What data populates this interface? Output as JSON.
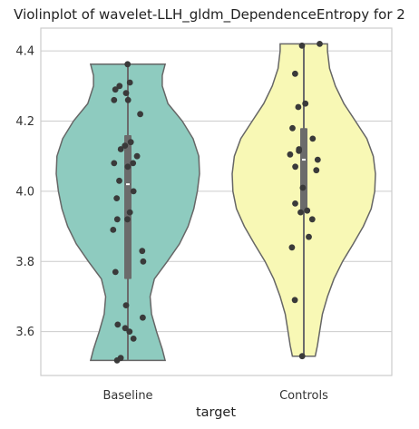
{
  "chart_data": {
    "type": "violin",
    "title": "Violinplot of wavelet-LLH_gldm_DependenceEntropy for 2",
    "xlabel": "target",
    "ylabel": "",
    "categories": [
      "Baseline",
      "Controls"
    ],
    "ylim": [
      3.475,
      4.465
    ],
    "yticks": [
      3.6,
      3.8,
      4.0,
      4.2,
      4.4
    ],
    "ytick_labels": [
      "3.6",
      "3.8",
      "4.0",
      "4.2",
      "4.4"
    ],
    "grid": true,
    "colors": {
      "Baseline": "#8ecbbf",
      "Controls": "#f8f8b5"
    },
    "violins": [
      {
        "category": "Baseline",
        "min": 3.518,
        "max": 4.362,
        "q1": 3.75,
        "median": 4.02,
        "q3": 4.16,
        "profile": [
          [
            3.518,
            0.52
          ],
          [
            3.55,
            0.48
          ],
          [
            3.6,
            0.4
          ],
          [
            3.65,
            0.33
          ],
          [
            3.7,
            0.31
          ],
          [
            3.75,
            0.37
          ],
          [
            3.8,
            0.55
          ],
          [
            3.85,
            0.72
          ],
          [
            3.9,
            0.84
          ],
          [
            3.95,
            0.92
          ],
          [
            4.0,
            0.97
          ],
          [
            4.05,
            1.0
          ],
          [
            4.1,
            0.99
          ],
          [
            4.15,
            0.91
          ],
          [
            4.2,
            0.76
          ],
          [
            4.25,
            0.56
          ],
          [
            4.3,
            0.48
          ],
          [
            4.33,
            0.48
          ],
          [
            4.362,
            0.52
          ]
        ],
        "points": [
          4.362,
          4.31,
          4.29,
          4.3,
          4.28,
          4.26,
          4.26,
          4.22,
          4.14,
          4.13,
          4.12,
          4.1,
          4.08,
          4.08,
          4.07,
          4.03,
          4.0,
          3.98,
          3.94,
          3.92,
          3.92,
          3.89,
          3.83,
          3.8,
          3.77,
          3.675,
          3.64,
          3.62,
          3.61,
          3.6,
          3.58,
          3.525,
          3.518
        ]
      },
      {
        "category": "Controls",
        "min": 3.53,
        "max": 4.42,
        "q1": 3.94,
        "median": 4.09,
        "q3": 4.18,
        "profile": [
          [
            3.53,
            0.16
          ],
          [
            3.56,
            0.19
          ],
          [
            3.6,
            0.22
          ],
          [
            3.65,
            0.26
          ],
          [
            3.7,
            0.33
          ],
          [
            3.75,
            0.42
          ],
          [
            3.8,
            0.54
          ],
          [
            3.85,
            0.69
          ],
          [
            3.9,
            0.83
          ],
          [
            3.95,
            0.94
          ],
          [
            4.0,
            0.99
          ],
          [
            4.05,
            1.0
          ],
          [
            4.1,
            0.97
          ],
          [
            4.15,
            0.88
          ],
          [
            4.2,
            0.72
          ],
          [
            4.25,
            0.56
          ],
          [
            4.3,
            0.44
          ],
          [
            4.35,
            0.36
          ],
          [
            4.4,
            0.33
          ],
          [
            4.42,
            0.33
          ]
        ],
        "points": [
          4.42,
          4.415,
          4.335,
          4.25,
          4.24,
          4.18,
          4.15,
          4.12,
          4.115,
          4.105,
          4.09,
          4.07,
          4.06,
          4.01,
          3.965,
          3.945,
          3.94,
          3.92,
          3.87,
          3.84,
          3.69,
          3.53
        ]
      }
    ]
  }
}
